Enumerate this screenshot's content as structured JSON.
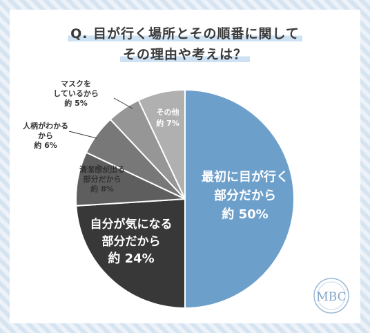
{
  "title_line1": "Q. 目が行く場所とその順番に関して",
  "title_line2": "その理由や考えは？",
  "logo_text": "MBC",
  "chart_data": {
    "type": "pie",
    "unit": "%",
    "start": "12 o'clock, clockwise",
    "slices": [
      {
        "label": [
          "最初に目が行く",
          "部分だから"
        ],
        "value_text": "約 50%",
        "value": 50,
        "color": "#6d9fcb",
        "label_color": "#ffffff"
      },
      {
        "label": [
          "自分が気になる",
          "部分だから"
        ],
        "value_text": "約 24%",
        "value": 24,
        "color": "#383838",
        "label_color": "#ffffff"
      },
      {
        "label": [
          "清潔感が出る",
          "部分だから"
        ],
        "value_text": "約 8%",
        "value": 8,
        "color": "#5e5e5e",
        "label_color": "#333333"
      },
      {
        "label": [
          "人柄がわかる",
          "から"
        ],
        "value_text": "約 6%",
        "value": 6,
        "color": "#787878",
        "label_color": "#333333"
      },
      {
        "label": [
          "マスクを",
          "しているから"
        ],
        "value_text": "約 5%",
        "value": 5,
        "color": "#969696",
        "label_color": "#333333"
      },
      {
        "label": [
          "その他"
        ],
        "value_text": "約 7%",
        "value": 7,
        "color": "#b0b0b0",
        "label_color": "#ffffff"
      }
    ]
  }
}
